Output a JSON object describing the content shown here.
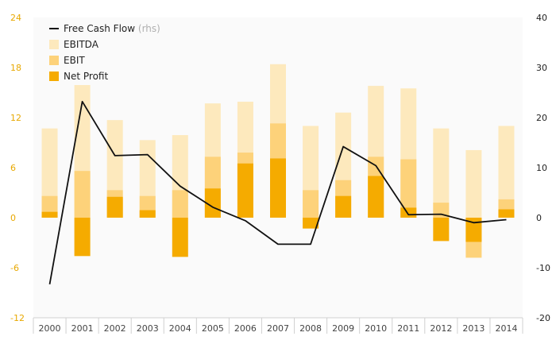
{
  "chart_data": {
    "type": "bar",
    "categories": [
      "2000",
      "2001",
      "2002",
      "2003",
      "2004",
      "2005",
      "2006",
      "2007",
      "2008",
      "2009",
      "2010",
      "2011",
      "2012",
      "2013",
      "2014"
    ],
    "ylim_left": [
      -12,
      24
    ],
    "yticks_left": [
      -12,
      -6,
      0,
      6,
      12,
      18,
      24
    ],
    "ylim_right": [
      -20,
      40
    ],
    "yticks_right": [
      -20,
      -10,
      0,
      10,
      20,
      30,
      40
    ],
    "series": [
      {
        "name": "EBITDA",
        "color": "#fde9bd",
        "axis": "left",
        "kind": "bar",
        "values": [
          10.7,
          15.9,
          11.7,
          9.3,
          9.9,
          13.7,
          13.9,
          18.4,
          11.0,
          12.6,
          15.8,
          15.5,
          10.7,
          8.1,
          11.0
        ]
      },
      {
        "name": "EBIT",
        "color": "#fdd27a",
        "axis": "left",
        "kind": "bar",
        "values": [
          2.6,
          5.6,
          3.3,
          2.6,
          3.3,
          7.3,
          7.8,
          11.3,
          3.3,
          4.5,
          7.3,
          7.0,
          1.8,
          -4.8,
          2.2
        ]
      },
      {
        "name": "Net Profit",
        "color": "#f5ab00",
        "axis": "left",
        "kind": "bar",
        "values": [
          0.7,
          -4.6,
          2.5,
          0.9,
          -4.7,
          3.5,
          6.5,
          7.1,
          -1.3,
          2.6,
          5.0,
          1.2,
          -2.8,
          -2.9,
          1.0
        ]
      },
      {
        "name": "Free Cash Flow",
        "suffix": "(rhs)",
        "color": "#111111",
        "axis": "right",
        "kind": "line",
        "values": [
          -13.3,
          23.2,
          12.4,
          12.6,
          6.3,
          2.1,
          -0.6,
          -5.3,
          -5.3,
          14.2,
          10.4,
          0.6,
          0.7,
          -1.0,
          -0.4
        ]
      }
    ],
    "legend_position": "top-left",
    "grid": false
  }
}
